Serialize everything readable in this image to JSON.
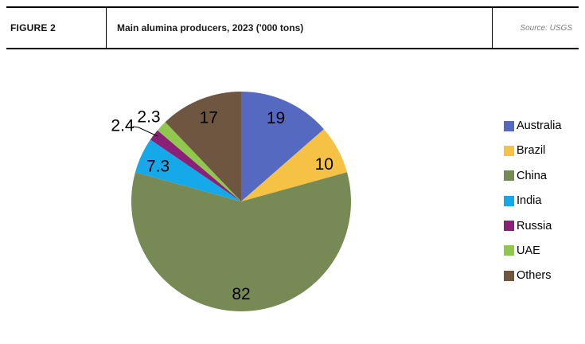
{
  "figure_header": {
    "label": "FIGURE 2",
    "title": "Main alumina producers, 2023 ('000 tons)",
    "source": "Source: USGS"
  },
  "chart_data": {
    "type": "pie",
    "title": "Main alumina producers, 2023 ('000 tons)",
    "unit": "'000 tons",
    "categories": [
      "Australia",
      "Brazil",
      "China",
      "India",
      "Russia",
      "UAE",
      "Others"
    ],
    "values": [
      19,
      10,
      82,
      7.3,
      2.4,
      2.3,
      17
    ],
    "labels": [
      "19",
      "10",
      "82",
      "7.3",
      "2.4",
      "2.3",
      "17"
    ],
    "colors": [
      "#5569c1",
      "#f5c245",
      "#778a55",
      "#16a9e9",
      "#8a2078",
      "#8fc84d",
      "#6f5640"
    ],
    "total": 140,
    "start_angle_deg": 0,
    "direction": "clockwise",
    "legend_position": "right",
    "label_color": "#000000",
    "leader_line_color": "#000000"
  }
}
